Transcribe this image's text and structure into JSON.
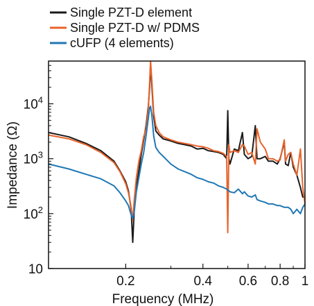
{
  "chart_data": {
    "type": "line",
    "xlabel": "Frequency (MHz)",
    "ylabel": "Impedance (Ω)",
    "xscale": "log",
    "yscale": "log",
    "xlim": [
      0.1,
      1.0
    ],
    "ylim": [
      10,
      60000
    ],
    "grid": false,
    "legend_position": "top-left, above plot",
    "x_ticks": [
      {
        "value": 0.2,
        "label": "0.2"
      },
      {
        "value": 0.4,
        "label": "0.4"
      },
      {
        "value": 0.6,
        "label": "0.6"
      },
      {
        "value": 0.8,
        "label": "0.8"
      },
      {
        "value": 1.0,
        "label": "1"
      }
    ],
    "y_ticks": [
      {
        "value": 10,
        "base": "10",
        "exp": ""
      },
      {
        "value": 100,
        "base": "10",
        "exp": "2"
      },
      {
        "value": 1000,
        "base": "10",
        "exp": "3"
      },
      {
        "value": 10000,
        "base": "10",
        "exp": "4"
      }
    ],
    "series": [
      {
        "name": "Single PZT-D element",
        "color": "#1a1a1a",
        "points": [
          [
            0.1,
            3000
          ],
          [
            0.12,
            2500
          ],
          [
            0.14,
            1900
          ],
          [
            0.16,
            1400
          ],
          [
            0.18,
            900
          ],
          [
            0.19,
            600
          ],
          [
            0.2,
            380
          ],
          [
            0.205,
            260
          ],
          [
            0.21,
            120
          ],
          [
            0.213,
            30
          ],
          [
            0.216,
            120
          ],
          [
            0.22,
            300
          ],
          [
            0.225,
            600
          ],
          [
            0.23,
            1200
          ],
          [
            0.235,
            2200
          ],
          [
            0.24,
            4000
          ],
          [
            0.245,
            9000
          ],
          [
            0.248,
            20000
          ],
          [
            0.25,
            55000
          ],
          [
            0.253,
            20000
          ],
          [
            0.257,
            6000
          ],
          [
            0.262,
            3200
          ],
          [
            0.27,
            2700
          ],
          [
            0.28,
            2300
          ],
          [
            0.3,
            2100
          ],
          [
            0.32,
            1900
          ],
          [
            0.34,
            1800
          ],
          [
            0.36,
            1700
          ],
          [
            0.38,
            1500
          ],
          [
            0.4,
            1550
          ],
          [
            0.42,
            1400
          ],
          [
            0.44,
            1350
          ],
          [
            0.46,
            1300
          ],
          [
            0.48,
            1200
          ],
          [
            0.495,
            1000
          ],
          [
            0.5,
            7500
          ],
          [
            0.505,
            1000
          ],
          [
            0.51,
            800
          ],
          [
            0.53,
            1500
          ],
          [
            0.55,
            1400
          ],
          [
            0.57,
            3000
          ],
          [
            0.58,
            1200
          ],
          [
            0.6,
            1000
          ],
          [
            0.62,
            1100
          ],
          [
            0.64,
            4000
          ],
          [
            0.65,
            1000
          ],
          [
            0.67,
            1000
          ],
          [
            0.7,
            1100
          ],
          [
            0.72,
            900
          ],
          [
            0.75,
            900
          ],
          [
            0.78,
            800
          ],
          [
            0.8,
            1000
          ],
          [
            0.83,
            2000
          ],
          [
            0.84,
            800
          ],
          [
            0.86,
            750
          ],
          [
            0.88,
            1300
          ],
          [
            0.9,
            700
          ],
          [
            0.93,
            500
          ],
          [
            0.96,
            300
          ],
          [
            0.98,
            200
          ],
          [
            1.0,
            200
          ]
        ]
      },
      {
        "name": "Single PZT-D w/ PDMS",
        "color": "#e8632a",
        "points": [
          [
            0.1,
            2700
          ],
          [
            0.12,
            2300
          ],
          [
            0.14,
            1800
          ],
          [
            0.16,
            1300
          ],
          [
            0.18,
            850
          ],
          [
            0.19,
            580
          ],
          [
            0.2,
            350
          ],
          [
            0.205,
            240
          ],
          [
            0.21,
            130
          ],
          [
            0.213,
            75
          ],
          [
            0.216,
            180
          ],
          [
            0.22,
            450
          ],
          [
            0.225,
            900
          ],
          [
            0.23,
            1400
          ],
          [
            0.235,
            2500
          ],
          [
            0.24,
            3500
          ],
          [
            0.245,
            8000
          ],
          [
            0.248,
            25000
          ],
          [
            0.25,
            60000
          ],
          [
            0.253,
            25000
          ],
          [
            0.257,
            7000
          ],
          [
            0.262,
            4000
          ],
          [
            0.27,
            3000
          ],
          [
            0.28,
            2500
          ],
          [
            0.3,
            2200
          ],
          [
            0.32,
            2000
          ],
          [
            0.34,
            1900
          ],
          [
            0.36,
            1800
          ],
          [
            0.38,
            1700
          ],
          [
            0.4,
            1650
          ],
          [
            0.42,
            1550
          ],
          [
            0.44,
            1400
          ],
          [
            0.46,
            1350
          ],
          [
            0.48,
            1250
          ],
          [
            0.495,
            1100
          ],
          [
            0.5,
            45
          ],
          [
            0.505,
            1800
          ],
          [
            0.51,
            1300
          ],
          [
            0.53,
            1400
          ],
          [
            0.55,
            1300
          ],
          [
            0.57,
            1800
          ],
          [
            0.58,
            1700
          ],
          [
            0.6,
            1200
          ],
          [
            0.62,
            1300
          ],
          [
            0.64,
            800
          ],
          [
            0.65,
            3500
          ],
          [
            0.67,
            2000
          ],
          [
            0.7,
            1500
          ],
          [
            0.72,
            1000
          ],
          [
            0.75,
            1000
          ],
          [
            0.78,
            900
          ],
          [
            0.8,
            950
          ],
          [
            0.83,
            2200
          ],
          [
            0.84,
            900
          ],
          [
            0.86,
            1200
          ],
          [
            0.88,
            1300
          ],
          [
            0.9,
            800
          ],
          [
            0.93,
            500
          ],
          [
            0.96,
            1500
          ],
          [
            0.98,
            300
          ],
          [
            1.0,
            150
          ]
        ]
      },
      {
        "name": "cUFP (4 elements)",
        "color": "#1f77b4",
        "points": [
          [
            0.1,
            800
          ],
          [
            0.12,
            650
          ],
          [
            0.14,
            520
          ],
          [
            0.16,
            430
          ],
          [
            0.18,
            320
          ],
          [
            0.19,
            240
          ],
          [
            0.2,
            170
          ],
          [
            0.205,
            140
          ],
          [
            0.21,
            95
          ],
          [
            0.213,
            80
          ],
          [
            0.216,
            110
          ],
          [
            0.22,
            250
          ],
          [
            0.225,
            450
          ],
          [
            0.23,
            800
          ],
          [
            0.235,
            1300
          ],
          [
            0.24,
            2600
          ],
          [
            0.245,
            5500
          ],
          [
            0.248,
            8500
          ],
          [
            0.25,
            9000
          ],
          [
            0.253,
            6000
          ],
          [
            0.257,
            2600
          ],
          [
            0.262,
            1600
          ],
          [
            0.27,
            1300
          ],
          [
            0.28,
            1100
          ],
          [
            0.3,
            800
          ],
          [
            0.32,
            650
          ],
          [
            0.34,
            580
          ],
          [
            0.36,
            520
          ],
          [
            0.38,
            450
          ],
          [
            0.4,
            420
          ],
          [
            0.42,
            380
          ],
          [
            0.44,
            360
          ],
          [
            0.46,
            320
          ],
          [
            0.48,
            300
          ],
          [
            0.495,
            280
          ],
          [
            0.5,
            270
          ],
          [
            0.51,
            250
          ],
          [
            0.53,
            240
          ],
          [
            0.55,
            280
          ],
          [
            0.57,
            230
          ],
          [
            0.58,
            250
          ],
          [
            0.6,
            210
          ],
          [
            0.62,
            200
          ],
          [
            0.64,
            220
          ],
          [
            0.65,
            180
          ],
          [
            0.67,
            170
          ],
          [
            0.7,
            160
          ],
          [
            0.72,
            150
          ],
          [
            0.75,
            150
          ],
          [
            0.78,
            140
          ],
          [
            0.8,
            140
          ],
          [
            0.83,
            130
          ],
          [
            0.86,
            130
          ],
          [
            0.88,
            120
          ],
          [
            0.9,
            100
          ],
          [
            0.93,
            120
          ],
          [
            0.96,
            100
          ],
          [
            0.98,
            130
          ],
          [
            1.0,
            150
          ]
        ]
      }
    ]
  }
}
